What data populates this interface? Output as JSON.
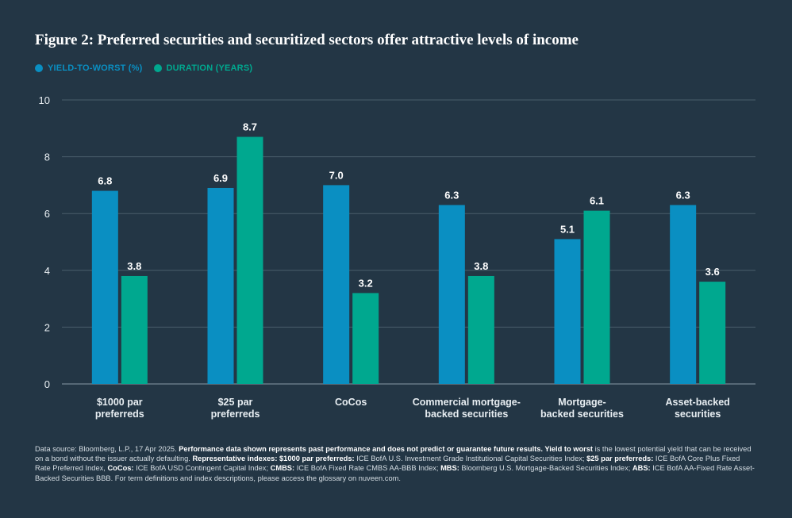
{
  "title": "Figure 2: Preferred securities and securitized sectors offer attractive levels of income",
  "legend": [
    {
      "label": "YIELD-TO-WORST (%)",
      "color": "#0a8fc2"
    },
    {
      "label": "DURATION (YEARS)",
      "color": "#00a88f"
    }
  ],
  "chart_data": {
    "type": "bar",
    "categories": [
      [
        "$1000 par",
        "preferreds"
      ],
      [
        "$25 par",
        "preferreds"
      ],
      [
        "CoCos"
      ],
      [
        "Commercial mortgage-",
        "backed securities"
      ],
      [
        "Mortgage-",
        "backed securities"
      ],
      [
        "Asset-backed",
        "securities"
      ]
    ],
    "series": [
      {
        "name": "YIELD-TO-WORST (%)",
        "values": [
          6.8,
          6.9,
          7.0,
          6.3,
          5.1,
          6.3
        ],
        "labels": [
          "6.8",
          "6.9",
          "7.0",
          "6.3",
          "5.1",
          "6.3"
        ],
        "color": "#0a8fc2"
      },
      {
        "name": "DURATION (YEARS)",
        "values": [
          3.8,
          8.7,
          3.2,
          3.8,
          6.1,
          3.6
        ],
        "labels": [
          "3.8",
          "8.7",
          "3.2",
          "3.8",
          "6.1",
          "3.6"
        ],
        "color": "#00a88f"
      }
    ],
    "ylim": [
      0,
      10
    ],
    "yticks": [
      "0",
      "2",
      "4",
      "6",
      "8",
      "10"
    ],
    "grid": true
  },
  "footnote": {
    "p1": "Data source: Bloomberg, L.P., 17 Apr 2025. ",
    "b1": "Performance data shown represents past performance and does not predict or guarantee future results. Yield to worst",
    "p2": " is the lowest potential yield that can be received on a bond without the issuer actually defaulting. ",
    "b2": "Representative indexes: $1000 par preferreds:",
    "p3": " ICE BofA U.S. Investment Grade Institutional Capital Securities Index; ",
    "b3": "$25 par preferreds:",
    "p4": " ICE BofA Core Plus Fixed Rate Preferred Index, ",
    "b4": "CoCos:",
    "p5": " ICE BofA USD Contingent Capital Index; ",
    "b5": "CMBS:",
    "p6": " ICE BofA Fixed Rate CMBS AA-BBB Index; ",
    "b6": "MBS:",
    "p7": " Bloomberg U.S. Mortgage-Backed Securities Index; ",
    "b7": "ABS:",
    "p8": " ICE BofA AA-Fixed Rate Asset-Backed Securities BBB. For term definitions and index descriptions, please access the glossary on nuveen.com."
  }
}
